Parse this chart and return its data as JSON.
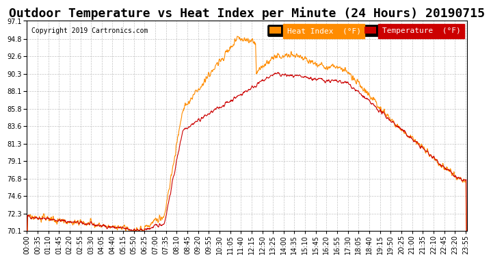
{
  "title": "Outdoor Temperature vs Heat Index per Minute (24 Hours) 20190715",
  "copyright": "Copyright 2019 Cartronics.com",
  "legend_heat_label": "Heat Index  (°F)",
  "legend_temp_label": "Temperature  (°F)",
  "heat_color": "#FF8C00",
  "temp_color": "#CC0000",
  "background_color": "#FFFFFF",
  "grid_color": "#AAAAAA",
  "ylim_min": 70.1,
  "ylim_max": 97.1,
  "yticks": [
    70.1,
    72.3,
    74.6,
    76.8,
    79.1,
    81.3,
    83.6,
    85.8,
    88.1,
    90.3,
    92.6,
    94.8,
    97.1
  ],
  "title_fontsize": 13,
  "copyright_fontsize": 7,
  "tick_fontsize": 7,
  "legend_fontsize": 8,
  "num_minutes": 1440
}
